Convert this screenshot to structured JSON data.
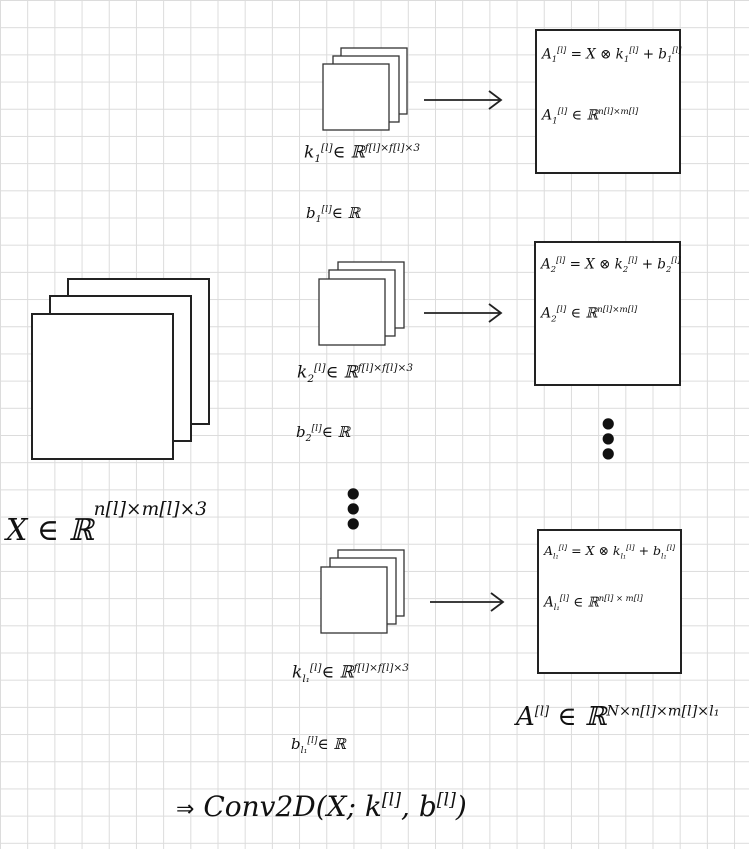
{
  "input": {
    "label_base": "X ∈ ℝ",
    "label_exponent": "n[l]×m[l]×3"
  },
  "kernels": [
    {
      "k_base": "k",
      "k_sub": "1",
      "k_sup": "[l]",
      "k_space": "∈ ℝ",
      "k_exponent": "f[l]×f[l]×3",
      "b_base": "b",
      "b_sub": "1",
      "b_sup": "[l]",
      "b_space": "∈ ℝ"
    },
    {
      "k_base": "k",
      "k_sub": "2",
      "k_sup": "[l]",
      "k_space": "∈ ℝ",
      "k_exponent": "f[l]×f[l]×3",
      "b_base": "b",
      "b_sub": "2",
      "b_sup": "[l]",
      "b_space": "∈ ℝ"
    },
    {
      "k_base": "k",
      "k_sub": "l₁",
      "k_sup": "[l]",
      "k_space": "∈ ℝ",
      "k_exponent": "f[l]×f[l]×3",
      "b_base": "b",
      "b_sub": "l₁",
      "b_sup": "[l]",
      "b_space": "∈ ℝ"
    }
  ],
  "outputs": [
    {
      "eq_lhs": "A",
      "eq_sub": "1",
      "eq_sup": "[l]",
      "eq_rhs": " = X ⊗ k",
      "eq_rhs_sub": "1",
      "eq_rhs_sup": "[l]",
      "eq_plus": " + b",
      "eq_plus_sub": "1",
      "eq_plus_sup": "[l]",
      "dom_lhs": "A",
      "dom_sub": "1",
      "dom_sup": "[l]",
      "dom_space": " ∈ ℝ",
      "dom_exponent": "n[l]×m[l]"
    },
    {
      "eq_lhs": "A",
      "eq_sub": "2",
      "eq_sup": "[l]",
      "eq_rhs": " = X ⊗ k",
      "eq_rhs_sub": "2",
      "eq_rhs_sup": "[l]",
      "eq_plus": " + b",
      "eq_plus_sub": "2",
      "eq_plus_sup": "[l]",
      "dom_lhs": "A",
      "dom_sub": "2",
      "dom_sup": "[l]",
      "dom_space": " ∈ ℝ",
      "dom_exponent": "n[l]×m[l]"
    },
    {
      "eq_lhs": "A",
      "eq_sub": "l₁",
      "eq_sup": "[l]",
      "eq_rhs": " = X ⊗ k",
      "eq_rhs_sub": "l₁",
      "eq_rhs_sup": "[l]",
      "eq_plus": " + b",
      "eq_plus_sub": "l₁",
      "eq_plus_sup": "[l]",
      "dom_lhs": "A",
      "dom_sub": "l₁",
      "dom_sup": "[l]",
      "dom_space": " ∈ ℝ",
      "dom_exponent": "n[l] × m[l]"
    }
  ],
  "output_total": {
    "base": "A",
    "sup": "[l]",
    "space": " ∈ ℝ",
    "exponent": "N×n[l]×m[l]×l₁"
  },
  "conv": {
    "arrow": "⇒",
    "text": "Conv2D(X; k",
    "k_sup": "[l]",
    "middle": ", b",
    "b_sup": "[l]",
    "close": ")"
  },
  "dots": {
    "symbol": "•"
  }
}
